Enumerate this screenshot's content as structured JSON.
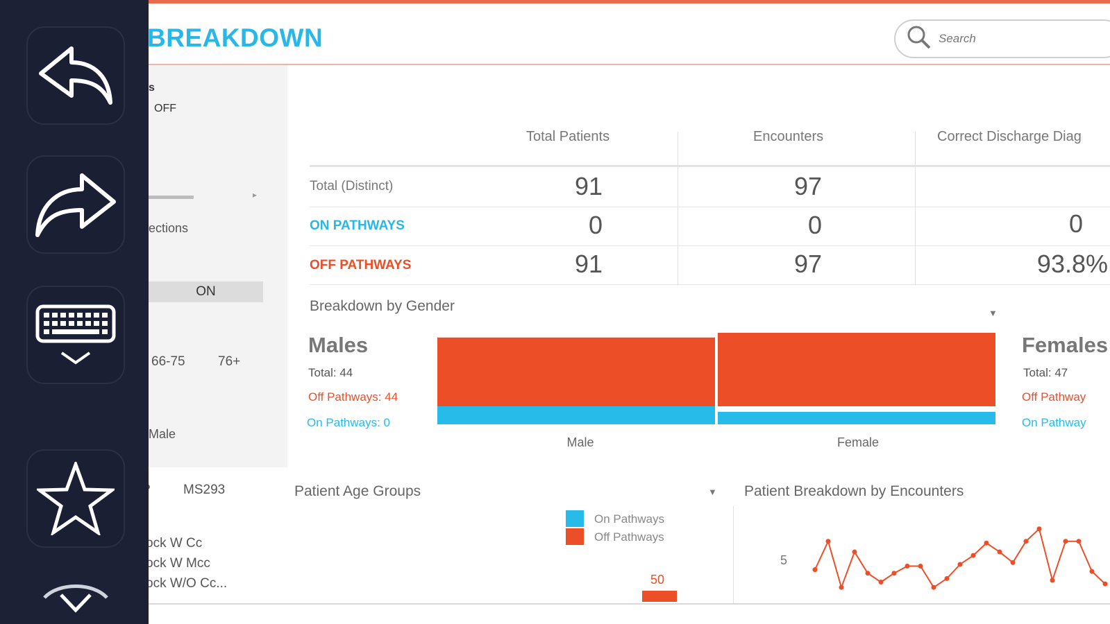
{
  "toolbar": {
    "icons": [
      "undo-arrow-icon",
      "redo-arrow-icon",
      "keyboard-icon",
      "star-icon",
      "chevron-down-icon"
    ]
  },
  "header": {
    "title": "BREAKDOWN",
    "search_placeholder": "Search"
  },
  "filters": {
    "label_a": "s",
    "label_off": "OFF",
    "label_sections": "ections",
    "toggle_on": "ON",
    "age_a": "66-75",
    "age_b": "76+",
    "gender_male": "Male",
    "drg_code_hint": "?",
    "drg_code": "MS293",
    "drg_items": [
      "ock W Cc",
      "ock W Mcc",
      "ock W/O Cc..."
    ]
  },
  "kpi": {
    "columns": [
      "Total Patients",
      "Encounters",
      "Correct Discharge Diag"
    ],
    "rows": [
      {
        "label": "Total (Distinct)",
        "values": [
          "91",
          "97",
          ""
        ]
      },
      {
        "label": "ON PATHWAYS",
        "values": [
          "0",
          "0",
          "0"
        ]
      },
      {
        "label": "OFF PATHWAYS",
        "values": [
          "91",
          "97",
          "93.8%"
        ]
      }
    ]
  },
  "gender": {
    "title": "Breakdown by Gender",
    "males": {
      "title": "Males",
      "total": "Total: 44",
      "off": "Off Pathways: 44",
      "on": "On Pathways: 0"
    },
    "females": {
      "title": "Females",
      "total": "Total: 47",
      "off": "Off Pathway",
      "on": "On Pathway"
    }
  },
  "age_groups": {
    "title": "Patient Age Groups",
    "legend_on": "On Pathways",
    "legend_off": "Off Pathways",
    "bar_label": "50"
  },
  "encounters": {
    "title": "Patient Breakdown by Encounters",
    "y_tick": "5"
  },
  "colors": {
    "on_pathways": "#26bbe9",
    "off_pathways": "#ec4f27",
    "title_blue": "#29b7e9",
    "toolbar_bg": "#1c2135"
  },
  "chart_data": [
    {
      "type": "bar",
      "title": "Breakdown by Gender",
      "categories": [
        "Male",
        "Female"
      ],
      "series": [
        {
          "name": "Off Pathways",
          "values": [
            44,
            47
          ]
        },
        {
          "name": "On Pathways",
          "values": [
            0,
            0
          ]
        }
      ]
    },
    {
      "type": "line",
      "title": "Patient Breakdown by Encounters",
      "y_ticks": [
        "5"
      ],
      "series": [
        {
          "values": [
            4,
            5.6,
            3,
            5,
            3.8,
            3.3,
            3.8,
            4.2,
            4.2,
            3,
            3.5,
            4.3,
            4.8,
            5.5,
            5,
            4.4,
            5.6,
            6.3,
            3.4,
            5.6,
            5.6,
            3.9,
            3.2
          ]
        }
      ]
    }
  ]
}
